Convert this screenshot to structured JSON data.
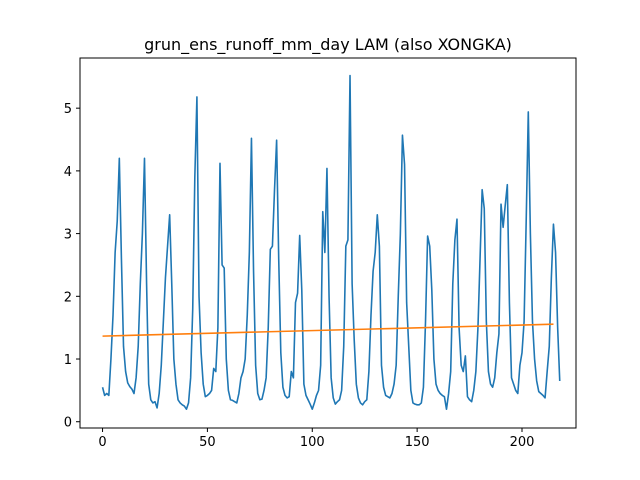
{
  "chart_data": {
    "type": "line",
    "title": "grun_ens_runoff_mm_day LAM (also XONGKA)",
    "xlabel": "",
    "ylabel": "",
    "xlim": [
      -10.75,
      225.75
    ],
    "ylim": [
      -0.1,
      5.8
    ],
    "xticks": [
      0,
      50,
      100,
      150,
      200
    ],
    "yticks": [
      0,
      1,
      2,
      3,
      4,
      5
    ],
    "grid": false,
    "colors": {
      "series_0": "#1f77b4",
      "series_1": "#ff7f0e"
    },
    "series": [
      {
        "values": [
          0.55,
          0.42,
          0.45,
          0.42,
          1.0,
          1.7,
          2.7,
          3.2,
          4.2,
          2.6,
          1.2,
          0.8,
          0.62,
          0.56,
          0.52,
          0.45,
          0.7,
          1.2,
          2.2,
          3.0,
          4.2,
          2.2,
          0.6,
          0.35,
          0.3,
          0.32,
          0.22,
          0.45,
          0.9,
          1.6,
          2.3,
          2.8,
          3.3,
          2.2,
          1.0,
          0.6,
          0.35,
          0.3,
          0.27,
          0.25,
          0.2,
          0.3,
          0.7,
          1.8,
          3.9,
          5.18,
          2.0,
          1.1,
          0.6,
          0.4,
          0.42,
          0.45,
          0.5,
          0.85,
          0.8,
          1.5,
          4.12,
          2.5,
          2.45,
          1.0,
          0.5,
          0.35,
          0.34,
          0.32,
          0.3,
          0.45,
          0.7,
          0.8,
          1.0,
          1.7,
          2.7,
          4.52,
          2.4,
          0.9,
          0.45,
          0.35,
          0.36,
          0.5,
          0.7,
          1.5,
          2.75,
          2.8,
          3.7,
          4.49,
          2.6,
          1.1,
          0.55,
          0.42,
          0.38,
          0.4,
          0.8,
          0.7,
          1.9,
          2.05,
          2.97,
          2.1,
          0.6,
          0.42,
          0.35,
          0.28,
          0.2,
          0.3,
          0.42,
          0.5,
          0.9,
          3.35,
          2.7,
          4.04,
          2.0,
          0.7,
          0.38,
          0.28,
          0.32,
          0.35,
          0.5,
          1.2,
          2.8,
          2.9,
          5.52,
          2.2,
          1.3,
          0.6,
          0.38,
          0.3,
          0.27,
          0.32,
          0.35,
          0.8,
          1.7,
          2.4,
          2.7,
          3.3,
          2.8,
          0.9,
          0.55,
          0.42,
          0.4,
          0.38,
          0.45,
          0.6,
          0.9,
          2.0,
          3.0,
          4.57,
          4.1,
          1.9,
          1.2,
          0.5,
          0.3,
          0.28,
          0.27,
          0.27,
          0.3,
          0.55,
          1.6,
          2.96,
          2.8,
          2.1,
          1.0,
          0.6,
          0.5,
          0.45,
          0.42,
          0.4,
          0.2,
          0.45,
          0.8,
          2.2,
          2.9,
          3.23,
          1.5,
          0.9,
          0.8,
          1.05,
          0.4,
          0.35,
          0.32,
          0.5,
          0.8,
          1.5,
          2.6,
          3.7,
          3.4,
          1.6,
          0.8,
          0.6,
          0.55,
          0.7,
          1.1,
          1.4,
          3.47,
          3.1,
          3.45,
          3.78,
          1.9,
          0.7,
          0.6,
          0.5,
          0.45,
          0.9,
          1.1,
          1.6,
          3.2,
          4.94,
          3.0,
          1.6,
          1.0,
          0.65,
          0.48,
          0.45,
          0.42,
          0.38,
          0.8,
          1.2,
          2.3,
          3.15,
          2.7,
          1.5,
          0.65
        ]
      },
      {
        "x": [
          0,
          215
        ],
        "values": [
          1.365,
          1.555
        ]
      }
    ]
  }
}
